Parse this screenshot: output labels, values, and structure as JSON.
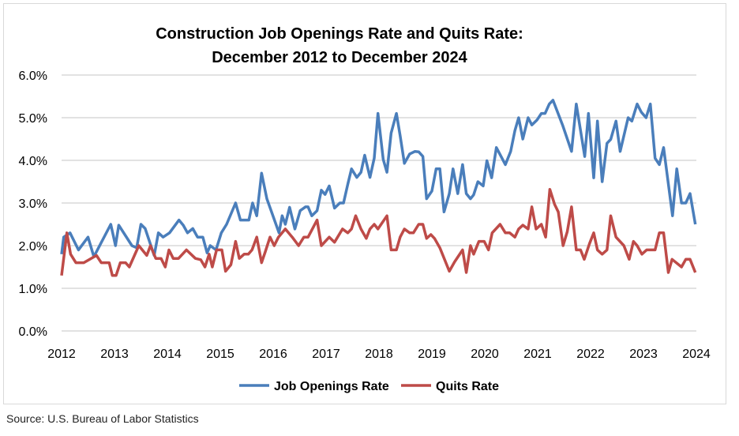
{
  "chart_data": {
    "type": "line",
    "title": "Construction Job Openings Rate and Quits Rate:",
    "subtitle": "December 2012 to December 2024",
    "xlabel": "",
    "ylabel": "",
    "xlim": [
      2012,
      2024
    ],
    "ylim": [
      0,
      6
    ],
    "x_ticks": [
      "2012",
      "2013",
      "2014",
      "2015",
      "2016",
      "2017",
      "2018",
      "2019",
      "2020",
      "2021",
      "2022",
      "2023",
      "2024"
    ],
    "y_ticks": [
      "0.0%",
      "1.0%",
      "2.0%",
      "3.0%",
      "4.0%",
      "5.0%",
      "6.0%"
    ],
    "y_unit": "percent",
    "grid": "horizontal",
    "legend_position": "bottom",
    "series": [
      {
        "name": "Job Openings Rate",
        "color": "#4a7ebb",
        "points": [
          [
            2012.0,
            1.8
          ],
          [
            2012.04,
            2.2
          ],
          [
            2012.16,
            2.3
          ],
          [
            2012.32,
            1.9
          ],
          [
            2012.5,
            2.2
          ],
          [
            2012.61,
            1.74
          ],
          [
            2012.93,
            2.5
          ],
          [
            2013.02,
            2.0
          ],
          [
            2013.08,
            2.48
          ],
          [
            2013.33,
            2.0
          ],
          [
            2013.42,
            1.95
          ],
          [
            2013.5,
            2.5
          ],
          [
            2013.58,
            2.4
          ],
          [
            2013.75,
            1.77
          ],
          [
            2013.83,
            2.3
          ],
          [
            2013.92,
            2.2
          ],
          [
            2014.04,
            2.3
          ],
          [
            2014.22,
            2.6
          ],
          [
            2014.3,
            2.48
          ],
          [
            2014.38,
            2.3
          ],
          [
            2014.48,
            2.4
          ],
          [
            2014.57,
            2.2
          ],
          [
            2014.67,
            2.2
          ],
          [
            2014.75,
            1.83
          ],
          [
            2014.81,
            2.0
          ],
          [
            2014.92,
            1.9
          ],
          [
            2015.02,
            2.3
          ],
          [
            2015.12,
            2.5
          ],
          [
            2015.29,
            3.0
          ],
          [
            2015.38,
            2.6
          ],
          [
            2015.54,
            2.6
          ],
          [
            2015.61,
            3.0
          ],
          [
            2015.69,
            2.7
          ],
          [
            2015.78,
            3.7
          ],
          [
            2015.88,
            3.1
          ],
          [
            2016.11,
            2.3
          ],
          [
            2016.17,
            2.7
          ],
          [
            2016.23,
            2.5
          ],
          [
            2016.31,
            2.9
          ],
          [
            2016.41,
            2.39
          ],
          [
            2016.51,
            2.82
          ],
          [
            2016.61,
            2.91
          ],
          [
            2016.66,
            2.91
          ],
          [
            2016.73,
            2.7
          ],
          [
            2016.83,
            2.82
          ],
          [
            2016.91,
            3.3
          ],
          [
            2016.98,
            3.2
          ],
          [
            2017.06,
            3.4
          ],
          [
            2017.16,
            2.88
          ],
          [
            2017.26,
            3.0
          ],
          [
            2017.33,
            3.0
          ],
          [
            2017.41,
            3.44
          ],
          [
            2017.48,
            3.8
          ],
          [
            2017.58,
            3.6
          ],
          [
            2017.66,
            3.72
          ],
          [
            2017.73,
            4.12
          ],
          [
            2017.83,
            3.6
          ],
          [
            2017.91,
            4.05
          ],
          [
            2017.98,
            5.1
          ],
          [
            2018.08,
            4.02
          ],
          [
            2018.15,
            3.72
          ],
          [
            2018.23,
            4.64
          ],
          [
            2018.33,
            5.1
          ],
          [
            2018.4,
            4.58
          ],
          [
            2018.48,
            3.93
          ],
          [
            2018.58,
            4.15
          ],
          [
            2018.68,
            4.21
          ],
          [
            2018.75,
            4.2
          ],
          [
            2018.83,
            4.09
          ],
          [
            2018.9,
            3.1
          ],
          [
            2019.0,
            3.28
          ],
          [
            2019.08,
            3.8
          ],
          [
            2019.15,
            3.8
          ],
          [
            2019.23,
            2.79
          ],
          [
            2019.33,
            3.22
          ],
          [
            2019.4,
            3.8
          ],
          [
            2019.49,
            3.22
          ],
          [
            2019.58,
            3.9
          ],
          [
            2019.65,
            3.22
          ],
          [
            2019.73,
            3.1
          ],
          [
            2019.79,
            3.19
          ],
          [
            2019.87,
            3.5
          ],
          [
            2019.97,
            3.4
          ],
          [
            2020.04,
            3.99
          ],
          [
            2020.13,
            3.59
          ],
          [
            2020.22,
            4.3
          ],
          [
            2020.39,
            3.9
          ],
          [
            2020.49,
            4.21
          ],
          [
            2020.57,
            4.7
          ],
          [
            2020.64,
            5.0
          ],
          [
            2020.72,
            4.5
          ],
          [
            2020.82,
            5.0
          ],
          [
            2020.89,
            4.83
          ],
          [
            2020.99,
            4.95
          ],
          [
            2021.07,
            5.1
          ],
          [
            2021.14,
            5.1
          ],
          [
            2021.22,
            5.32
          ],
          [
            2021.29,
            5.41
          ],
          [
            2021.47,
            4.83
          ],
          [
            2021.64,
            4.21
          ],
          [
            2021.73,
            5.32
          ],
          [
            2021.89,
            4.09
          ],
          [
            2021.96,
            5.1
          ],
          [
            2022.06,
            3.59
          ],
          [
            2022.13,
            4.92
          ],
          [
            2022.22,
            3.5
          ],
          [
            2022.31,
            4.4
          ],
          [
            2022.38,
            4.49
          ],
          [
            2022.48,
            4.92
          ],
          [
            2022.56,
            4.21
          ],
          [
            2022.71,
            5.0
          ],
          [
            2022.78,
            4.92
          ],
          [
            2022.88,
            5.32
          ],
          [
            2022.96,
            5.13
          ],
          [
            2023.05,
            5.0
          ],
          [
            2023.13,
            5.32
          ],
          [
            2023.22,
            4.05
          ],
          [
            2023.3,
            3.9
          ],
          [
            2023.38,
            4.3
          ],
          [
            2023.55,
            2.7
          ],
          [
            2023.63,
            3.8
          ],
          [
            2023.72,
            3.0
          ],
          [
            2023.8,
            3.0
          ],
          [
            2023.88,
            3.22
          ],
          [
            2023.98,
            2.5
          ]
        ]
      },
      {
        "name": "Quits Rate",
        "color": "#be4b48",
        "points": [
          [
            2012.0,
            1.3
          ],
          [
            2012.1,
            2.3
          ],
          [
            2012.17,
            1.8
          ],
          [
            2012.27,
            1.6
          ],
          [
            2012.42,
            1.6
          ],
          [
            2012.66,
            1.77
          ],
          [
            2012.75,
            1.6
          ],
          [
            2012.9,
            1.6
          ],
          [
            2012.96,
            1.3
          ],
          [
            2013.03,
            1.3
          ],
          [
            2013.11,
            1.6
          ],
          [
            2013.21,
            1.6
          ],
          [
            2013.28,
            1.5
          ],
          [
            2013.46,
            2.0
          ],
          [
            2013.61,
            1.77
          ],
          [
            2013.68,
            2.0
          ],
          [
            2013.78,
            1.7
          ],
          [
            2013.88,
            1.7
          ],
          [
            2013.96,
            1.5
          ],
          [
            2014.03,
            1.9
          ],
          [
            2014.11,
            1.7
          ],
          [
            2014.21,
            1.7
          ],
          [
            2014.36,
            1.9
          ],
          [
            2014.53,
            1.7
          ],
          [
            2014.63,
            1.67
          ],
          [
            2014.71,
            1.5
          ],
          [
            2014.79,
            1.8
          ],
          [
            2014.85,
            1.5
          ],
          [
            2014.93,
            1.9
          ],
          [
            2015.03,
            1.9
          ],
          [
            2015.1,
            1.4
          ],
          [
            2015.2,
            1.55
          ],
          [
            2015.29,
            2.1
          ],
          [
            2015.36,
            1.7
          ],
          [
            2015.45,
            1.8
          ],
          [
            2015.53,
            1.8
          ],
          [
            2015.6,
            1.9
          ],
          [
            2015.69,
            2.2
          ],
          [
            2015.78,
            1.6
          ],
          [
            2015.85,
            1.85
          ],
          [
            2015.94,
            2.2
          ],
          [
            2016.02,
            2.0
          ],
          [
            2016.1,
            2.2
          ],
          [
            2016.23,
            2.39
          ],
          [
            2016.36,
            2.2
          ],
          [
            2016.48,
            2.0
          ],
          [
            2016.58,
            2.2
          ],
          [
            2016.66,
            2.2
          ],
          [
            2016.83,
            2.6
          ],
          [
            2016.91,
            2.0
          ],
          [
            2017.06,
            2.2
          ],
          [
            2017.16,
            2.08
          ],
          [
            2017.31,
            2.39
          ],
          [
            2017.41,
            2.3
          ],
          [
            2017.48,
            2.39
          ],
          [
            2017.56,
            2.7
          ],
          [
            2017.66,
            2.39
          ],
          [
            2017.76,
            2.17
          ],
          [
            2017.83,
            2.39
          ],
          [
            2017.91,
            2.5
          ],
          [
            2017.98,
            2.39
          ],
          [
            2018.15,
            2.7
          ],
          [
            2018.23,
            1.9
          ],
          [
            2018.33,
            1.9
          ],
          [
            2018.4,
            2.2
          ],
          [
            2018.48,
            2.39
          ],
          [
            2018.58,
            2.3
          ],
          [
            2018.65,
            2.3
          ],
          [
            2018.75,
            2.5
          ],
          [
            2018.83,
            2.5
          ],
          [
            2018.9,
            2.17
          ],
          [
            2018.98,
            2.26
          ],
          [
            2019.05,
            2.17
          ],
          [
            2019.15,
            1.95
          ],
          [
            2019.33,
            1.4
          ],
          [
            2019.43,
            1.62
          ],
          [
            2019.58,
            1.9
          ],
          [
            2019.65,
            1.37
          ],
          [
            2019.73,
            2.0
          ],
          [
            2019.79,
            1.8
          ],
          [
            2019.89,
            2.1
          ],
          [
            2019.99,
            2.1
          ],
          [
            2020.07,
            1.9
          ],
          [
            2020.14,
            2.3
          ],
          [
            2020.29,
            2.5
          ],
          [
            2020.39,
            2.3
          ],
          [
            2020.47,
            2.3
          ],
          [
            2020.57,
            2.2
          ],
          [
            2020.64,
            2.39
          ],
          [
            2020.72,
            2.48
          ],
          [
            2020.82,
            2.39
          ],
          [
            2020.89,
            2.91
          ],
          [
            2020.97,
            2.39
          ],
          [
            2021.07,
            2.5
          ],
          [
            2021.15,
            2.2
          ],
          [
            2021.23,
            3.32
          ],
          [
            2021.32,
            2.97
          ],
          [
            2021.39,
            2.79
          ],
          [
            2021.48,
            2.0
          ],
          [
            2021.56,
            2.33
          ],
          [
            2021.64,
            2.91
          ],
          [
            2021.73,
            1.9
          ],
          [
            2021.81,
            1.9
          ],
          [
            2021.88,
            1.68
          ],
          [
            2021.98,
            2.05
          ],
          [
            2022.06,
            2.3
          ],
          [
            2022.13,
            1.9
          ],
          [
            2022.22,
            1.8
          ],
          [
            2022.31,
            1.9
          ],
          [
            2022.38,
            2.7
          ],
          [
            2022.48,
            2.2
          ],
          [
            2022.63,
            2.0
          ],
          [
            2022.73,
            1.68
          ],
          [
            2022.81,
            2.1
          ],
          [
            2022.88,
            2.0
          ],
          [
            2022.97,
            1.8
          ],
          [
            2023.06,
            1.9
          ],
          [
            2023.22,
            1.9
          ],
          [
            2023.3,
            2.3
          ],
          [
            2023.38,
            2.3
          ],
          [
            2023.47,
            1.37
          ],
          [
            2023.54,
            1.68
          ],
          [
            2023.72,
            1.5
          ],
          [
            2023.8,
            1.68
          ],
          [
            2023.88,
            1.68
          ],
          [
            2023.98,
            1.37
          ]
        ]
      }
    ]
  },
  "source": "Source: U.S. Bureau of Labor Statistics"
}
